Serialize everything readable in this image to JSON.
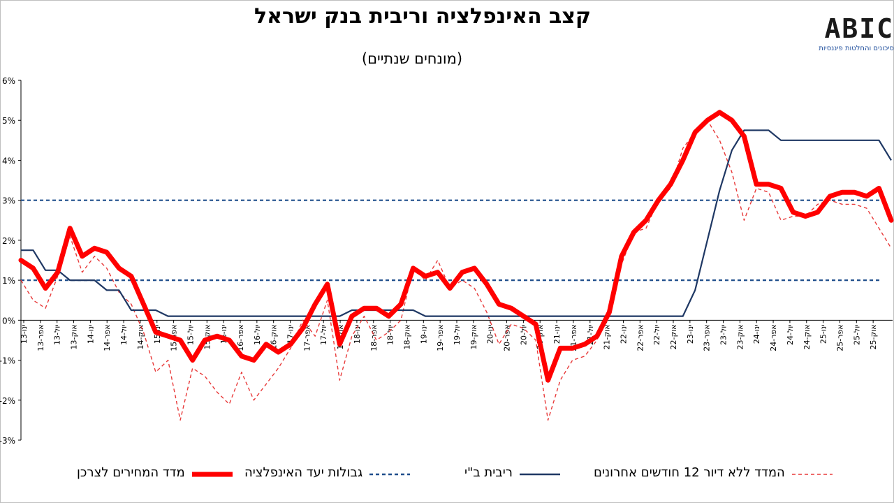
{
  "chart_data": {
    "type": "line",
    "title": "קצב האינפלציה וריבית בנק ישראל",
    "subtitle": "(מונחים שנתיים)",
    "xlabel": "",
    "ylabel": "",
    "tick_labels": [
      "ינו-13",
      "אפר-13",
      "יול-13",
      "אוק-13",
      "ינו-14",
      "אפר-14",
      "יול-14",
      "אוק-14",
      "ינו-15",
      "אפר-15",
      "יול-15",
      "אוק-15",
      "ינו-16",
      "אפר-16",
      "יול-16",
      "אוק-16",
      "ינו-17",
      "אפר-17",
      "יול-17",
      "אוק-17",
      "ינו-18",
      "אפר-18",
      "יול-18",
      "אוק-18",
      "ינו-19",
      "אפר-19",
      "יול-19",
      "אוק-19",
      "ינו-20",
      "אפר-20",
      "יול-20",
      "אוק-20",
      "ינו-21",
      "אפר-21",
      "יול-21",
      "אוק-21",
      "ינו-22",
      "אפר-22",
      "יול-22",
      "אוק-22",
      "ינו-23",
      "אפר-23",
      "יול-23",
      "אוק-23",
      "ינו-24",
      "אפר-24",
      "יול-24",
      "אוק-24",
      "ינו-25",
      "אפר-25",
      "יול-25",
      "אוק-25"
    ],
    "ylim": [
      -3,
      6
    ],
    "y_tick_labels": [
      "-3%",
      "-2%",
      "-1%",
      "0%",
      "1%",
      "2%",
      "3%",
      "4%",
      "5%",
      "6%"
    ],
    "x_axis_at": 0,
    "grid": false,
    "legend_position": "bottom",
    "series": [
      {
        "name": "מדד המחירים לצרכן",
        "color": "#ff0000",
        "style": "solid-thick",
        "values": [
          1.5,
          1.3,
          0.8,
          1.2,
          2.3,
          1.6,
          1.8,
          1.7,
          1.3,
          1.1,
          0.4,
          -0.3,
          -0.4,
          -0.5,
          -1.0,
          -0.5,
          -0.4,
          -0.5,
          -0.9,
          -1.0,
          -0.6,
          -0.8,
          -0.6,
          -0.2,
          0.4,
          0.9,
          -0.6,
          0.1,
          0.3,
          0.3,
          0.1,
          0.4,
          1.3,
          1.1,
          1.2,
          0.8,
          1.2,
          1.3,
          0.9,
          0.4,
          0.3,
          0.1,
          -0.1,
          -1.5,
          -0.7,
          -0.7,
          -0.6,
          -0.4,
          0.2,
          1.6,
          2.2,
          2.5,
          3.0,
          3.4,
          4.0,
          4.7,
          5.0,
          5.2,
          5.0,
          4.6,
          3.4,
          3.4,
          3.3,
          2.7,
          2.6,
          2.7,
          3.1,
          3.2,
          3.2,
          3.1,
          3.3,
          2.5
        ]
      },
      {
        "name": "המדד ללא דיור 12 חודשים אחרונים",
        "color": "#e83a3a",
        "style": "dashed-thin",
        "values": [
          1.0,
          0.5,
          0.3,
          1.1,
          2.1,
          1.2,
          1.6,
          1.3,
          0.7,
          0.4,
          -0.3,
          -1.3,
          -1.0,
          -2.5,
          -1.2,
          -1.4,
          -1.8,
          -2.1,
          -1.3,
          -2.0,
          -1.6,
          -1.2,
          -0.7,
          0.0,
          -0.4,
          0.5,
          -1.5,
          -0.4,
          0.1,
          -0.5,
          -0.3,
          0.0,
          1.3,
          1.0,
          1.5,
          0.8,
          1.0,
          0.8,
          0.2,
          -0.6,
          -0.1,
          -0.2,
          -0.5,
          -2.5,
          -1.5,
          -1.0,
          -0.9,
          -0.5,
          0.3,
          1.4,
          2.2,
          2.3,
          3.0,
          3.3,
          4.3,
          4.7,
          5.0,
          4.5,
          3.7,
          2.5,
          3.3,
          3.2,
          2.5,
          2.6,
          2.6,
          2.9,
          3.0,
          2.9,
          2.9,
          2.8,
          2.3,
          1.8
        ]
      },
      {
        "name": "ריבית ב\"י",
        "color": "#1f3864",
        "style": "solid-thin",
        "values": [
          1.75,
          1.75,
          1.25,
          1.25,
          1.0,
          1.0,
          1.0,
          0.75,
          0.75,
          0.25,
          0.25,
          0.25,
          0.1,
          0.1,
          0.1,
          0.1,
          0.1,
          0.1,
          0.1,
          0.1,
          0.1,
          0.1,
          0.1,
          0.1,
          0.1,
          0.1,
          0.1,
          0.25,
          0.25,
          0.25,
          0.25,
          0.25,
          0.25,
          0.1,
          0.1,
          0.1,
          0.1,
          0.1,
          0.1,
          0.1,
          0.1,
          0.1,
          0.1,
          0.1,
          0.1,
          0.1,
          0.1,
          0.1,
          0.1,
          0.1,
          0.1,
          0.1,
          0.1,
          0.1,
          0.1,
          0.75,
          2.0,
          3.25,
          4.25,
          4.75,
          4.75,
          4.75,
          4.5,
          4.5,
          4.5,
          4.5,
          4.5,
          4.5,
          4.5,
          4.5,
          4.5,
          4.0
        ]
      },
      {
        "name": "גבולות יעד האינפלציה",
        "color": "#1f4e8c",
        "style": "dashed-thick",
        "values": [
          1,
          3
        ]
      }
    ]
  },
  "logo": {
    "mark": "ABIC",
    "tagline": "סיכונים והחלטות פיננסיות"
  }
}
